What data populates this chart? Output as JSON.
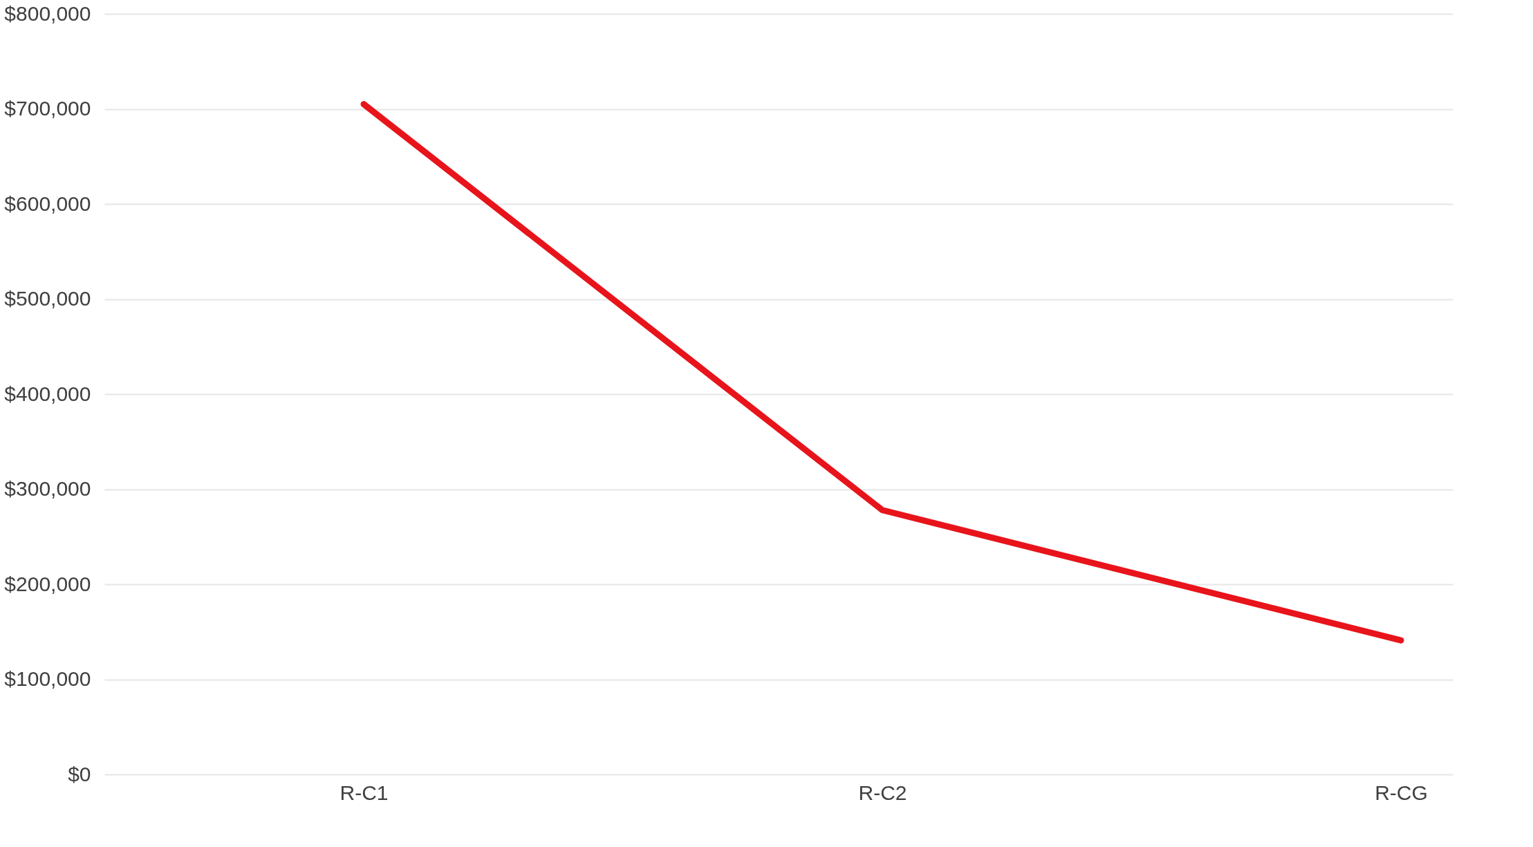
{
  "chart_data": {
    "type": "line",
    "categories": [
      "R-C1",
      "R-C2",
      "R-CG"
    ],
    "series": [
      {
        "color": "#e8141b",
        "values": [
          705000,
          278000,
          141000
        ]
      }
    ],
    "ylim": [
      0,
      800000
    ],
    "yticks": [
      {
        "value": 0,
        "label": "$0"
      },
      {
        "value": 100000,
        "label": "$100,000"
      },
      {
        "value": 200000,
        "label": "$200,000"
      },
      {
        "value": 300000,
        "label": "$300,000"
      },
      {
        "value": 400000,
        "label": "$400,000"
      },
      {
        "value": 500000,
        "label": "$500,000"
      },
      {
        "value": 600000,
        "label": "$600,000"
      },
      {
        "value": 700000,
        "label": "$700,000"
      },
      {
        "value": 800000,
        "label": "$800,000"
      }
    ],
    "grid": "y",
    "line_style": "solid",
    "legend": false
  }
}
